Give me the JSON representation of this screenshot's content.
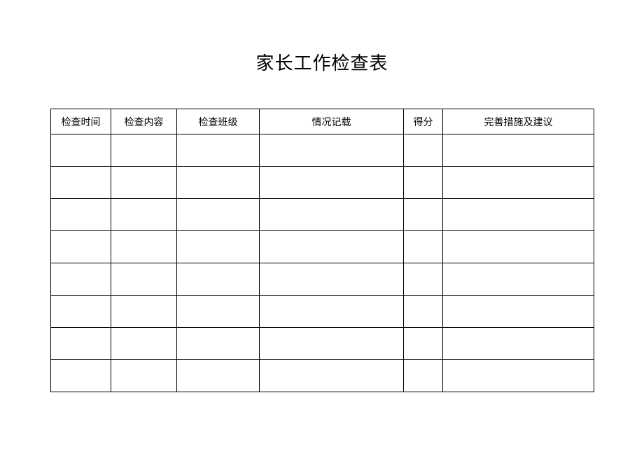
{
  "title": "家长工作检查表",
  "table": {
    "columns": [
      {
        "label": "检查时间",
        "width_class": "col-1"
      },
      {
        "label": "检查内容",
        "width_class": "col-2"
      },
      {
        "label": "检查班级",
        "width_class": "col-3"
      },
      {
        "label": "情况记载",
        "width_class": "col-4"
      },
      {
        "label": "得分",
        "width_class": "col-5"
      },
      {
        "label": "完善措施及建议",
        "width_class": "col-6"
      }
    ],
    "row_count": 8,
    "border_color": "#000000",
    "background_color": "#ffffff",
    "header_fontsize": 14,
    "title_fontsize": 26
  }
}
